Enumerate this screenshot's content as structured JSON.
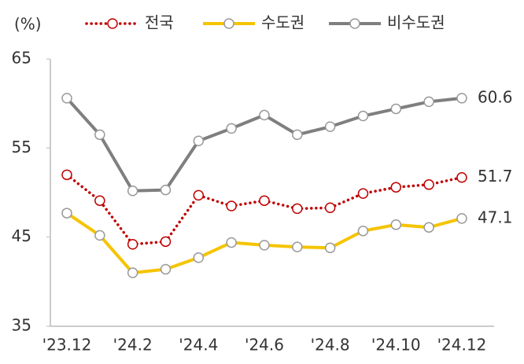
{
  "chart_data": {
    "type": "line",
    "y_label": "(%)",
    "categories": [
      "'23.12",
      null,
      "'24.2",
      null,
      "'24.4",
      null,
      "'24.6",
      null,
      "'24.8",
      null,
      "'24.10",
      null,
      "'24.12"
    ],
    "series": [
      {
        "name": "전국",
        "color": "#c00000",
        "dashed": true,
        "values": [
          52.0,
          49.1,
          44.2,
          44.5,
          49.7,
          48.5,
          49.1,
          48.2,
          48.3,
          49.9,
          50.6,
          50.9,
          51.7
        ]
      },
      {
        "name": "수도권",
        "color": "#f5c400",
        "dashed": false,
        "values": [
          47.7,
          45.2,
          41.0,
          41.4,
          42.7,
          44.4,
          44.1,
          43.9,
          43.8,
          45.7,
          46.4,
          46.1,
          47.1
        ]
      },
      {
        "name": "비수도권",
        "color": "#7f7f7f",
        "dashed": false,
        "values": [
          60.6,
          56.5,
          50.2,
          50.3,
          55.8,
          57.2,
          58.7,
          56.5,
          57.4,
          58.6,
          59.4,
          60.2,
          60.6
        ]
      }
    ],
    "ylim": [
      35,
      65
    ],
    "yticks": [
      35,
      45,
      55,
      65
    ],
    "grid": false
  }
}
